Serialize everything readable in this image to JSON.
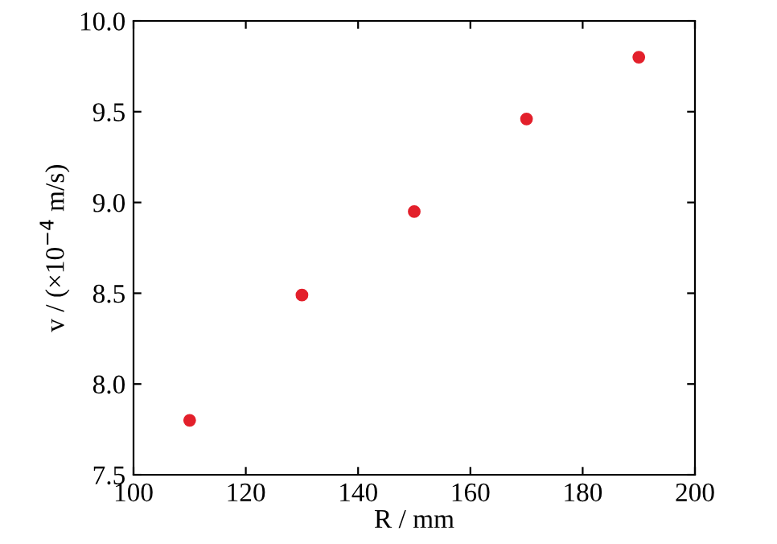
{
  "chart_data": {
    "type": "scatter",
    "xlabel": "R / mm",
    "ylabel": "v / (×10$^{−4}$ m/s)",
    "x": [
      110,
      130,
      150,
      170,
      190
    ],
    "series": [
      {
        "color": "#e3202b",
        "values": [
          7.8,
          8.49,
          8.95,
          9.46,
          9.8
        ]
      }
    ],
    "xlim": [
      100,
      200
    ],
    "xticks": [
      100,
      120,
      140,
      160,
      180,
      200
    ],
    "ylim": [
      7.5,
      10.0
    ],
    "yticks": [
      7.5,
      {
        "value": 8.0,
        "label": "8.0"
      },
      8.5,
      {
        "value": 9.0,
        "label": "9.0"
      },
      9.5,
      {
        "value": 10.0,
        "label": "10.0"
      }
    ],
    "marker": "circle",
    "grid": false,
    "legend": false
  }
}
